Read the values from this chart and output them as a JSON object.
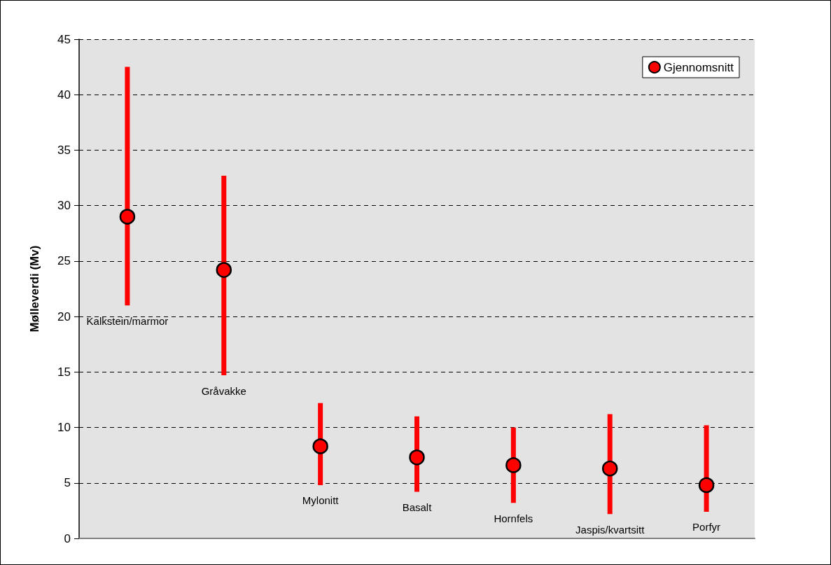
{
  "chart_data": {
    "type": "scatter",
    "ylabel": "Mølleverdi (Mv)",
    "categories": [
      "Kalkstein/marmor",
      "Gråvakke",
      "Mylonitt",
      "Basalt",
      "Hornfels",
      "Jaspis/kvartsitt",
      "Porfyr"
    ],
    "series": [
      {
        "name": "Gjennomsnitt",
        "color": "#ff0000",
        "values": [
          29,
          24.2,
          8.3,
          7.3,
          6.6,
          6.3,
          4.8
        ],
        "errors": [
          [
            21,
            42.5
          ],
          [
            14.7,
            32.7
          ],
          [
            4.8,
            12.2
          ],
          [
            4.2,
            11.0
          ],
          [
            3.2,
            10.0
          ],
          [
            2.2,
            11.2
          ],
          [
            2.4,
            10.2
          ]
        ]
      }
    ],
    "ylim": [
      0,
      45
    ],
    "yticks": [
      0,
      5,
      10,
      15,
      20,
      25,
      30,
      35,
      40,
      45
    ],
    "grid": "y",
    "legend": "top right",
    "marker": "circle"
  }
}
